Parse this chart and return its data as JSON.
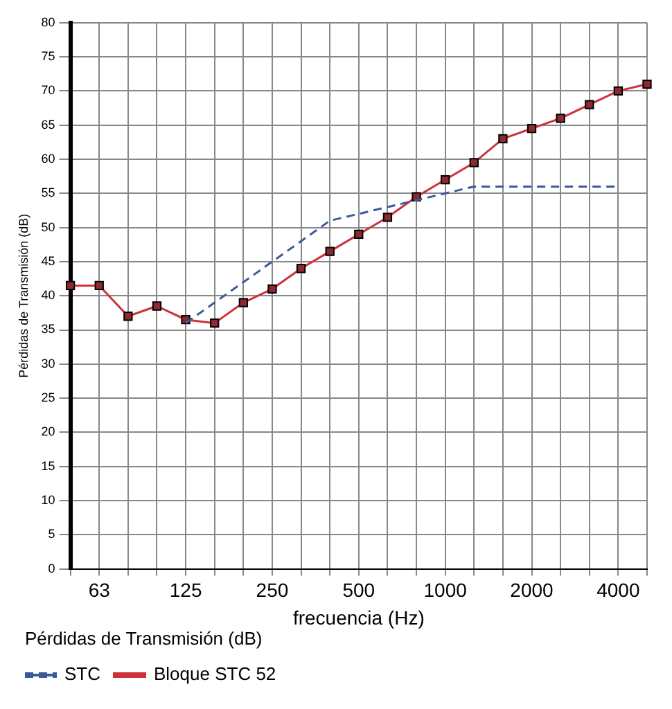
{
  "chart_data": {
    "type": "line",
    "xlabel": "frecuencia (Hz)",
    "ylabel": "Pérdidas de Transmisión (dB)",
    "legend_title": "Pérdidas de Transmisión (dB)",
    "categories": [
      null,
      "63",
      null,
      null,
      "125",
      null,
      null,
      "250",
      null,
      null,
      "500",
      null,
      null,
      "1000",
      null,
      null,
      "2000",
      null,
      null,
      "4000",
      null
    ],
    "series": [
      {
        "name": "STC",
        "color": "#3a5a9a",
        "line_style": "dashed",
        "marker": "none",
        "values": [
          null,
          null,
          null,
          null,
          36,
          39,
          42,
          45,
          48,
          51,
          52,
          53,
          54,
          55,
          56,
          56,
          56,
          56,
          56,
          56,
          null
        ]
      },
      {
        "name": "Bloque STC 52",
        "color": "#d0303a",
        "line_style": "solid",
        "marker": "square",
        "values": [
          41.5,
          41.5,
          37,
          38.5,
          36.5,
          36,
          39,
          41,
          44,
          46.5,
          49,
          51.5,
          54.5,
          57,
          59.5,
          63,
          64.5,
          66,
          68,
          70,
          71
        ]
      }
    ],
    "ylim": [
      0,
      80
    ],
    "yticks": [
      0,
      5,
      10,
      15,
      20,
      25,
      30,
      35,
      40,
      45,
      50,
      55,
      60,
      65,
      70,
      75,
      80
    ],
    "grid": true,
    "legend": "bottom"
  }
}
